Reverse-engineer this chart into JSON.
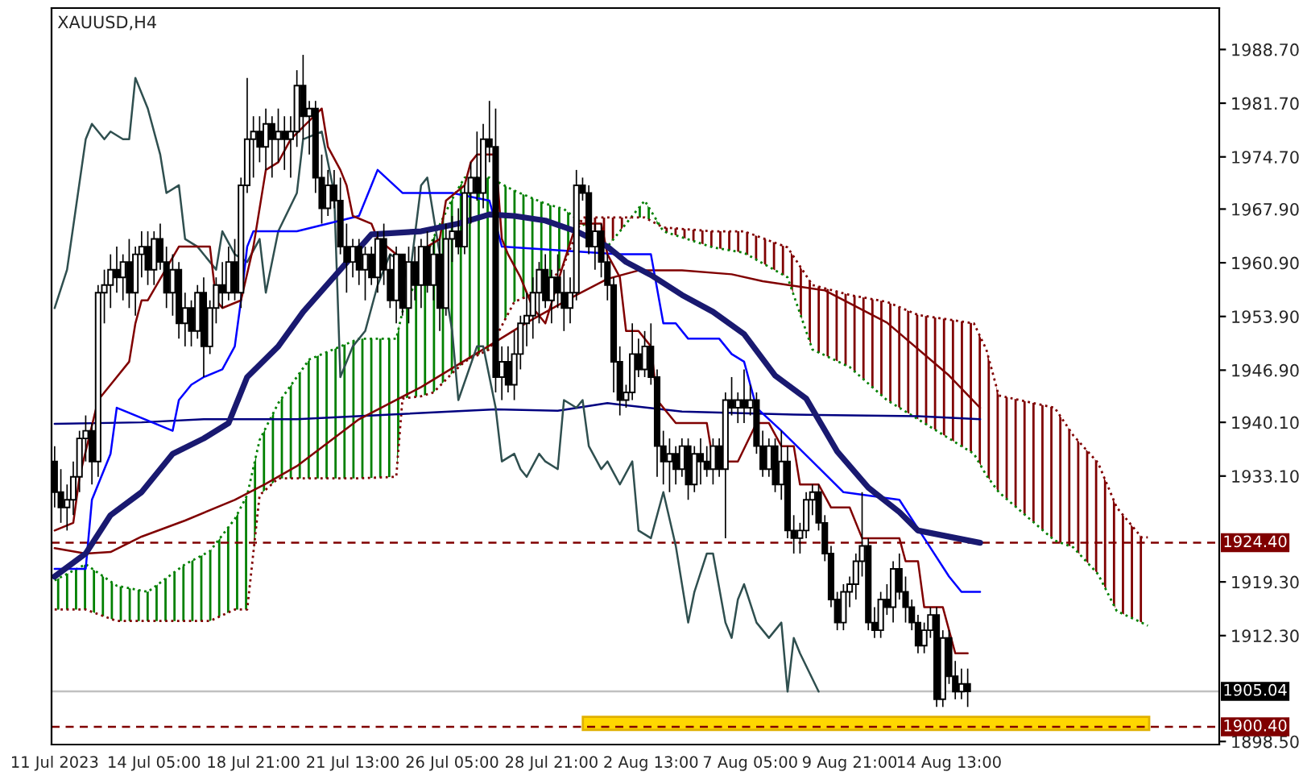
{
  "chart_data": {
    "type": "candlestick",
    "title": "XAUUSD,H4",
    "categories": [
      "11 Jul 2023",
      null,
      null,
      null,
      null,
      null,
      null,
      null,
      null,
      null,
      null,
      null,
      null,
      null,
      null,
      null,
      "14 Jul 05:00",
      null,
      null,
      null,
      null,
      null,
      null,
      null,
      null,
      null,
      null,
      null,
      null,
      null,
      null,
      null,
      "18 Jul 21:00",
      null,
      null,
      null,
      null,
      null,
      null,
      null,
      null,
      null,
      null,
      null,
      null,
      null,
      null,
      null,
      "21 Jul 13:00",
      null,
      null,
      null,
      null,
      null,
      null,
      null,
      null,
      null,
      null,
      null,
      null,
      null,
      null,
      null,
      "26 Jul 05:00",
      null,
      null,
      null,
      null,
      null,
      null,
      null,
      null,
      null,
      null,
      null,
      null,
      null,
      null,
      null,
      "28 Jul 21:00",
      null,
      null,
      null,
      null,
      null,
      null,
      null,
      null,
      null,
      null,
      null,
      null,
      null,
      null,
      null,
      "2 Aug 13:00",
      null,
      null,
      null,
      null,
      null,
      null,
      null,
      null,
      null,
      null,
      null,
      null,
      null,
      null,
      null,
      "7 Aug 05:00",
      null,
      null,
      null,
      null,
      null,
      null,
      null,
      null,
      null,
      null,
      null,
      null,
      null,
      null,
      null,
      "9 Aug 21:00",
      null,
      null,
      null,
      null,
      null,
      null,
      null,
      null,
      null,
      null,
      null,
      null,
      null,
      null,
      null,
      "14 Aug 13:00",
      null,
      null,
      null,
      null,
      null,
      null,
      null,
      null,
      null,
      null,
      null,
      null,
      null,
      null,
      null,
      null,
      null,
      null,
      null,
      null,
      null,
      null,
      null,
      null,
      null,
      null,
      null,
      null,
      null,
      null,
      null,
      null
    ],
    "ohlc": [
      [
        1935,
        1937,
        1929,
        1931
      ],
      [
        1931,
        1934,
        1927,
        1929
      ],
      [
        1929,
        1932,
        1926,
        1930
      ],
      [
        1930,
        1935,
        1928,
        1933
      ],
      [
        1933,
        1939,
        1931,
        1938
      ],
      [
        1938,
        1941,
        1935,
        1939
      ],
      [
        1939,
        1940,
        1932,
        1935
      ],
      [
        1935,
        1958,
        1933,
        1957
      ],
      [
        1957,
        1960,
        1953,
        1958
      ],
      [
        1958,
        1962,
        1955,
        1960
      ],
      [
        1960,
        1963,
        1957,
        1959
      ],
      [
        1959,
        1962,
        1956,
        1961
      ],
      [
        1961,
        1964,
        1955,
        1957
      ],
      [
        1957,
        1963,
        1954,
        1962
      ],
      [
        1962,
        1965,
        1959,
        1963
      ],
      [
        1963,
        1965,
        1958,
        1960
      ],
      [
        1960,
        1965,
        1958,
        1964
      ],
      [
        1964,
        1966,
        1960,
        1961
      ],
      [
        1961,
        1963,
        1955,
        1957
      ],
      [
        1957,
        1962,
        1954,
        1960
      ],
      [
        1960,
        1961,
        1951,
        1953
      ],
      [
        1953,
        1957,
        1950,
        1955
      ],
      [
        1955,
        1956,
        1950,
        1952
      ],
      [
        1952,
        1958,
        1951,
        1957
      ],
      [
        1957,
        1959,
        1946,
        1950
      ],
      [
        1950,
        1956,
        1949,
        1955
      ],
      [
        1955,
        1959,
        1953,
        1958
      ],
      [
        1958,
        1961,
        1955,
        1957
      ],
      [
        1957,
        1963,
        1956,
        1961
      ],
      [
        1961,
        1964,
        1956,
        1957
      ],
      [
        1957,
        1972,
        1955,
        1971
      ],
      [
        1971,
        1985,
        1970,
        1977
      ],
      [
        1977,
        1980,
        1972,
        1978
      ],
      [
        1978,
        1980,
        1974,
        1976
      ],
      [
        1976,
        1981,
        1973,
        1979
      ],
      [
        1979,
        1980,
        1972,
        1977
      ],
      [
        1977,
        1981,
        1974,
        1978
      ],
      [
        1978,
        1980,
        1973,
        1977
      ],
      [
        1977,
        1980,
        1972,
        1978
      ],
      [
        1978,
        1986,
        1976,
        1984
      ],
      [
        1984,
        1988,
        1977,
        1980
      ],
      [
        1980,
        1982,
        1975,
        1981
      ],
      [
        1981,
        1982,
        1970,
        1972
      ],
      [
        1972,
        1975,
        1966,
        1968
      ],
      [
        1968,
        1973,
        1967,
        1971
      ],
      [
        1971,
        1973,
        1968,
        1969
      ],
      [
        1969,
        1972,
        1962,
        1963
      ],
      [
        1963,
        1966,
        1957,
        1961
      ],
      [
        1961,
        1964,
        1959,
        1963
      ],
      [
        1963,
        1964,
        1958,
        1960
      ],
      [
        1960,
        1963,
        1956,
        1962
      ],
      [
        1962,
        1963,
        1958,
        1959
      ],
      [
        1959,
        1965,
        1957,
        1964
      ],
      [
        1964,
        1966,
        1958,
        1960
      ],
      [
        1960,
        1962,
        1955,
        1956
      ],
      [
        1956,
        1963,
        1953,
        1962
      ],
      [
        1962,
        1962,
        1954,
        1955
      ],
      [
        1955,
        1963,
        1953,
        1961
      ],
      [
        1961,
        1963,
        1956,
        1958
      ],
      [
        1958,
        1964,
        1955,
        1963
      ],
      [
        1963,
        1965,
        1957,
        1958
      ],
      [
        1958,
        1964,
        1956,
        1962
      ],
      [
        1962,
        1964,
        1952,
        1955
      ],
      [
        1955,
        1966,
        1954,
        1964
      ],
      [
        1964,
        1967,
        1961,
        1965
      ],
      [
        1965,
        1968,
        1962,
        1963
      ],
      [
        1963,
        1971,
        1962,
        1970
      ],
      [
        1970,
        1974,
        1966,
        1972
      ],
      [
        1972,
        1978,
        1969,
        1970
      ],
      [
        1970,
        1979,
        1968,
        1977
      ],
      [
        1977,
        1982,
        1974,
        1976
      ],
      [
        1976,
        1981,
        1944,
        1946
      ],
      [
        1946,
        1950,
        1943,
        1948
      ],
      [
        1948,
        1950,
        1944,
        1945
      ],
      [
        1945,
        1952,
        1943,
        1949
      ],
      [
        1949,
        1954,
        1947,
        1953
      ],
      [
        1953,
        1957,
        1950,
        1954
      ],
      [
        1954,
        1959,
        1951,
        1957
      ],
      [
        1957,
        1961,
        1953,
        1960
      ],
      [
        1960,
        1962,
        1955,
        1956
      ],
      [
        1956,
        1960,
        1953,
        1959
      ],
      [
        1959,
        1962,
        1955,
        1957
      ],
      [
        1957,
        1960,
        1952,
        1955
      ],
      [
        1955,
        1959,
        1953,
        1957
      ],
      [
        1957,
        1973,
        1956,
        1971
      ],
      [
        1971,
        1972,
        1969,
        1970
      ],
      [
        1970,
        1971,
        1962,
        1963
      ],
      [
        1963,
        1966,
        1960,
        1965
      ],
      [
        1965,
        1966,
        1959,
        1961
      ],
      [
        1961,
        1962,
        1956,
        1958
      ],
      [
        1958,
        1959,
        1944,
        1948
      ],
      [
        1948,
        1950,
        1941,
        1943
      ],
      [
        1943,
        1945,
        1942,
        1944
      ],
      [
        1944,
        1953,
        1943,
        1949
      ],
      [
        1949,
        1951,
        1946,
        1947
      ],
      [
        1947,
        1952,
        1946,
        1950
      ],
      [
        1950,
        1953,
        1945,
        1946
      ],
      [
        1946,
        1947,
        1933,
        1937
      ],
      [
        1937,
        1939,
        1932,
        1935
      ],
      [
        1935,
        1938,
        1931,
        1936
      ],
      [
        1936,
        1937,
        1932,
        1934
      ],
      [
        1934,
        1938,
        1933,
        1937
      ],
      [
        1937,
        1938,
        1930,
        1932
      ],
      [
        1932,
        1937,
        1931,
        1936
      ],
      [
        1936,
        1938,
        1932,
        1935
      ],
      [
        1935,
        1937,
        1933,
        1934
      ],
      [
        1934,
        1938,
        1932,
        1937
      ],
      [
        1937,
        1938,
        1933,
        1934
      ],
      [
        1934,
        1944,
        1925,
        1943
      ],
      [
        1943,
        1946,
        1941,
        1942
      ],
      [
        1942,
        1944,
        1940,
        1943
      ],
      [
        1943,
        1947,
        1940,
        1942
      ],
      [
        1942,
        1945,
        1941,
        1943
      ],
      [
        1943,
        1944,
        1936,
        1937
      ],
      [
        1937,
        1939,
        1933,
        1934
      ],
      [
        1934,
        1938,
        1933,
        1937
      ],
      [
        1937,
        1938,
        1931,
        1932
      ],
      [
        1932,
        1939,
        1930,
        1935
      ],
      [
        1935,
        1937,
        1925,
        1926
      ],
      [
        1926,
        1928,
        1923,
        1925
      ],
      [
        1925,
        1927,
        1923,
        1926
      ],
      [
        1926,
        1931,
        1925,
        1930
      ],
      [
        1930,
        1932,
        1928,
        1931
      ],
      [
        1931,
        1932,
        1926,
        1927
      ],
      [
        1927,
        1928,
        1922,
        1923
      ],
      [
        1923,
        1924,
        1916,
        1917
      ],
      [
        1917,
        1918,
        1913,
        1914
      ],
      [
        1914,
        1919,
        1913,
        1918
      ],
      [
        1918,
        1920,
        1916,
        1919
      ],
      [
        1919,
        1923,
        1917,
        1922
      ],
      [
        1922,
        1931,
        1920,
        1924
      ],
      [
        1924,
        1925,
        1913,
        1914
      ],
      [
        1914,
        1916,
        1912,
        1913
      ],
      [
        1913,
        1918,
        1912,
        1917
      ],
      [
        1917,
        1919,
        1915,
        1916
      ],
      [
        1916,
        1922,
        1914,
        1921
      ],
      [
        1921,
        1923,
        1917,
        1918
      ],
      [
        1918,
        1920,
        1914,
        1916
      ],
      [
        1916,
        1917,
        1913,
        1914
      ],
      [
        1914,
        1915,
        1910,
        1911
      ],
      [
        1911,
        1914,
        1910,
        1913
      ],
      [
        1913,
        1916,
        1912,
        1915
      ],
      [
        1915,
        1916,
        1903,
        1904
      ],
      [
        1904,
        1913,
        1903,
        1912
      ],
      [
        1912,
        1913,
        1906,
        1907
      ],
      [
        1907,
        1909,
        1904,
        1905
      ],
      [
        1905,
        1908,
        1904,
        1906
      ],
      [
        1906,
        1908,
        1903,
        1905.04
      ],
      null,
      null,
      null,
      null,
      null,
      null,
      null,
      null,
      null,
      null,
      null,
      null,
      null,
      null,
      null,
      null,
      null,
      null,
      null,
      null,
      null,
      null,
      null,
      null,
      null,
      null,
      null,
      null,
      null
    ],
    "series": [
      {
        "type": "line",
        "color": "#008000",
        "line_style": "dotted",
        "values": [
          1919.5,
          null,
          null,
          null,
          null,
          1921.6,
          null,
          null,
          null,
          null,
          1918.8,
          null,
          null,
          null,
          null,
          1918,
          null,
          null,
          null,
          null,
          null,
          1921.6,
          null,
          null,
          null,
          1923.3,
          null,
          null,
          null,
          1927.5,
          null,
          1930.6,
          null,
          1937.8,
          null,
          null,
          1942.6,
          null,
          null,
          null,
          null,
          1948.3,
          null,
          null,
          null,
          null,
          null,
          null,
          null,
          1951,
          null,
          null,
          null,
          null,
          null,
          1951,
          1954.5,
          null,
          null,
          1960,
          null,
          1964.2,
          null,
          null,
          1969.2,
          null,
          1972,
          null,
          null,
          null,
          1972,
          null,
          null,
          null,
          1970.3,
          null,
          null,
          null,
          null,
          1968.6,
          null,
          null,
          1967.9,
          null,
          null,
          1966,
          null,
          null,
          null,
          1963,
          null,
          null,
          null,
          null,
          null,
          1969,
          null,
          null,
          1965,
          null,
          null,
          null,
          null,
          null,
          null,
          null,
          1962.9,
          null,
          null,
          null,
          null,
          1962.2,
          null,
          null,
          null,
          null,
          null,
          null,
          1959,
          null,
          null,
          null,
          1949.6,
          null,
          null,
          null,
          null,
          null,
          1947.3,
          null,
          null,
          null,
          null,
          null,
          1943,
          null,
          null,
          null,
          null,
          1940.5,
          null,
          null,
          null,
          null,
          null,
          null,
          null,
          null,
          1936,
          null,
          1933.2,
          null,
          1931,
          null,
          null,
          null,
          null,
          null,
          null,
          null,
          null,
          1924.7,
          null,
          null,
          1923.8,
          null,
          null,
          null,
          1920.3,
          null,
          null,
          1915.5,
          null,
          null,
          null,
          1914,
          1913.6
        ]
      },
      {
        "type": "line",
        "color": "#800000",
        "line_style": "dotted",
        "values": [
          1915.7,
          null,
          null,
          null,
          null,
          1915.7,
          null,
          null,
          null,
          null,
          1914.2,
          null,
          null,
          null,
          null,
          1914.2,
          null,
          null,
          null,
          null,
          null,
          1914.2,
          null,
          null,
          null,
          1914.2,
          null,
          null,
          null,
          1915.7,
          null,
          1915.7,
          null,
          1930.6,
          null,
          null,
          1932.8,
          null,
          null,
          null,
          null,
          1932.8,
          null,
          null,
          null,
          null,
          null,
          null,
          null,
          1932.8,
          null,
          null,
          null,
          null,
          null,
          1933,
          1943.2,
          null,
          null,
          1943.5,
          null,
          1944,
          null,
          null,
          1946.5,
          null,
          1948,
          null,
          null,
          null,
          1949.6,
          null,
          null,
          null,
          1955.8,
          null,
          null,
          null,
          null,
          1957.5,
          null,
          null,
          1960.7,
          null,
          null,
          1966.8,
          null,
          null,
          null,
          1966.8,
          null,
          null,
          null,
          null,
          null,
          1966.8,
          null,
          null,
          1965.5,
          null,
          null,
          null,
          null,
          null,
          null,
          null,
          1965,
          null,
          null,
          null,
          null,
          1965,
          null,
          null,
          null,
          null,
          null,
          null,
          1962.9,
          null,
          null,
          null,
          1958,
          null,
          null,
          null,
          null,
          null,
          1956.7,
          null,
          null,
          null,
          null,
          null,
          1955.8,
          null,
          null,
          null,
          null,
          1954.1,
          null,
          null,
          null,
          null,
          null,
          null,
          null,
          null,
          1953,
          null,
          1949.6,
          null,
          1943.6,
          null,
          null,
          null,
          null,
          null,
          null,
          null,
          null,
          1942,
          null,
          null,
          1938.4,
          null,
          null,
          null,
          1934.8,
          null,
          null,
          1929,
          null,
          null,
          null,
          1925.1,
          1925.1
        ]
      },
      {
        "type": "line",
        "color": "#000080",
        "line_style": "solid",
        "values": [
          1939.9,
          null,
          null,
          null,
          null,
          null,
          null,
          null,
          null,
          null,
          null,
          null,
          null,
          null,
          1940.1,
          null,
          null,
          null,
          null,
          null,
          null,
          null,
          null,
          null,
          1940.5,
          null,
          null,
          null,
          null,
          null,
          null,
          null,
          null,
          null,
          null,
          null,
          null,
          null,
          null,
          1940.5,
          null,
          null,
          null,
          null,
          null,
          null,
          null,
          null,
          null,
          null,
          null,
          null,
          null,
          null,
          null,
          null,
          1941.2,
          null,
          null,
          null,
          null,
          null,
          null,
          null,
          null,
          null,
          null,
          null,
          null,
          null,
          null,
          1941.8,
          null,
          null,
          null,
          null,
          null,
          null,
          null,
          null,
          null,
          1941.6,
          null,
          null,
          null,
          null,
          null,
          null,
          null,
          1942.6,
          null,
          null,
          null,
          null,
          null,
          null,
          null,
          null,
          null,
          null,
          null,
          1941.5,
          null,
          null,
          null,
          null,
          null,
          null,
          null,
          null,
          null,
          null,
          null,
          null,
          null,
          null,
          null,
          null,
          null,
          1941.1,
          null,
          null,
          null,
          null,
          null,
          null,
          null,
          null,
          null,
          null,
          null,
          null,
          null,
          null,
          null,
          null,
          null,
          null,
          null,
          1940.9,
          null,
          null,
          null,
          null,
          null,
          null,
          null,
          null,
          null,
          1940.5,
          null,
          null,
          null,
          null,
          null,
          null,
          null,
          null,
          null,
          null,
          null,
          null,
          null,
          null,
          null,
          null,
          null,
          null,
          null,
          null,
          null,
          null,
          null,
          null,
          null,
          null,
          null
        ]
      },
      {
        "type": "line",
        "color": "#800000",
        "line_style": "solid",
        "values": [
          1923.7,
          null,
          null,
          null,
          null,
          1923,
          null,
          null,
          null,
          1923.2,
          null,
          null,
          null,
          null,
          1925.2,
          null,
          null,
          null,
          null,
          null,
          null,
          1927.3,
          null,
          null,
          null,
          null,
          null,
          null,
          null,
          1930,
          null,
          null,
          null,
          null,
          1932.1,
          null,
          null,
          null,
          null,
          1934.4,
          null,
          null,
          null,
          null,
          null,
          null,
          null,
          null,
          null,
          1940.5,
          null,
          null,
          null,
          null,
          null,
          null,
          null,
          null,
          null,
          1944.7,
          null,
          null,
          null,
          null,
          null,
          null,
          null,
          null,
          null,
          1949.6,
          null,
          null,
          null,
          null,
          null,
          null,
          1953.1,
          null,
          null,
          null,
          null,
          null,
          null,
          null,
          1956.7,
          null,
          null,
          null,
          null,
          1958.8,
          null,
          null,
          null,
          null,
          1959.9,
          null,
          null,
          null,
          null,
          null,
          null,
          1959.9,
          null,
          null,
          null,
          null,
          null,
          null,
          null,
          1959.4,
          null,
          null,
          null,
          null,
          1958.5,
          null,
          null,
          null,
          null,
          null,
          null,
          null,
          null,
          null,
          1957.3,
          null,
          null,
          null,
          null,
          null,
          null,
          null,
          null,
          null,
          1953.1,
          null,
          null,
          null,
          null,
          null,
          null,
          null,
          null,
          null,
          1946.2,
          null,
          null,
          null,
          null,
          1942,
          null,
          null,
          null,
          null,
          null,
          null,
          null,
          null,
          null,
          null,
          null,
          null,
          null,
          null,
          null,
          null,
          null,
          null,
          null,
          null,
          null,
          null,
          null,
          null,
          null,
          null,
          null
        ]
      },
      {
        "type": "line",
        "color": "#2f4f4f",
        "line_style": "solid",
        "values": [
          1955,
          null,
          1960,
          null,
          null,
          1977,
          1979,
          null,
          1977,
          1978,
          null,
          1977,
          1977,
          1985,
          null,
          1981,
          null,
          1975,
          1970,
          null,
          1971,
          1964,
          null,
          1963,
          null,
          1961,
          1960,
          1965,
          null,
          1962,
          null,
          1961,
          null,
          1964,
          1957,
          null,
          1965,
          null,
          null,
          1970,
          1977,
          null,
          null,
          1978,
          null,
          1970,
          1946,
          null,
          1950,
          null,
          1952,
          null,
          1958,
          null,
          1962,
          null,
          1961,
          1958,
          null,
          1971,
          1972,
          null,
          1962,
          null,
          1952,
          1943,
          null,
          null,
          1950,
          1950,
          null,
          1942,
          1935,
          null,
          1936,
          1934,
          1933,
          null,
          1936,
          1935,
          null,
          1934,
          1943,
          null,
          1942,
          1943,
          1937,
          null,
          1934,
          1935,
          null,
          1932,
          null,
          1935,
          1926,
          null,
          1925,
          null,
          1931,
          null,
          1924,
          null,
          1914,
          1918,
          null,
          1923,
          1923,
          null,
          1914,
          1912,
          1917,
          1919,
          null,
          1914,
          null,
          1912,
          null,
          1914,
          1905,
          1912,
          1910,
          null,
          null,
          1905,
          null,
          null,
          null,
          null,
          null,
          null,
          null,
          null,
          null,
          null,
          null,
          null,
          null,
          null,
          null,
          null,
          null,
          null,
          null,
          null,
          null,
          null,
          null,
          null,
          null,
          null,
          null,
          null,
          null,
          null,
          null,
          null,
          null,
          null,
          null,
          null,
          null,
          null,
          null,
          null,
          null,
          null,
          null,
          null,
          null,
          null,
          null,
          null,
          null,
          null,
          null,
          null,
          null
        ]
      },
      {
        "type": "line",
        "color": "#0000ff",
        "line_style": "solid",
        "values": [
          1921,
          null,
          null,
          null,
          null,
          1921,
          1930,
          1932,
          null,
          1936,
          1942,
          null,
          null,
          null,
          null,
          null,
          null,
          null,
          null,
          1939,
          1943,
          null,
          1945,
          null,
          1946,
          null,
          null,
          1947,
          null,
          1950,
          1956,
          1963,
          1965,
          null,
          null,
          null,
          null,
          null,
          null,
          1965,
          null,
          null,
          null,
          null,
          null,
          null,
          null,
          null,
          null,
          1967,
          null,
          1971,
          1973,
          null,
          null,
          null,
          1970,
          null,
          null,
          null,
          null,
          null,
          null,
          null,
          1970,
          null,
          null,
          null,
          null,
          null,
          1969,
          null,
          1963,
          null,
          null,
          null,
          null,
          null,
          null,
          null,
          null,
          null,
          null,
          null,
          null,
          null,
          null,
          null,
          null,
          null,
          null,
          1962,
          null,
          null,
          null,
          null,
          1962,
          null,
          1953,
          null,
          1953,
          null,
          1951,
          null,
          null,
          null,
          null,
          1951,
          null,
          1949,
          null,
          1948,
          null,
          1942,
          null,
          null,
          null,
          1939,
          null,
          null,
          null,
          null,
          1935,
          null,
          null,
          null,
          null,
          1931,
          null,
          null,
          null,
          null,
          null,
          null,
          null,
          null,
          1930,
          null,
          null,
          null,
          1925,
          null,
          null,
          null,
          1920,
          null,
          1918,
          null,
          null,
          1918,
          null,
          null,
          null,
          null,
          null,
          null,
          null,
          null,
          null,
          null,
          null,
          null,
          null,
          null,
          null,
          null,
          null,
          null,
          null,
          null,
          null,
          null,
          null,
          null,
          null,
          null,
          null
        ]
      },
      {
        "type": "line",
        "color": "#800000",
        "line_style": "solid",
        "values": [
          1926,
          null,
          null,
          1927,
          1933,
          null,
          null,
          1943,
          null,
          1945,
          null,
          null,
          1948,
          1953,
          1956,
          1956,
          null,
          null,
          null,
          null,
          1963,
          null,
          null,
          null,
          null,
          1963,
          1956,
          1955,
          null,
          null,
          1956,
          null,
          1963,
          1968,
          1973,
          null,
          1974,
          null,
          1977,
          null,
          null,
          null,
          null,
          1981,
          1976,
          null,
          1973,
          1971,
          1967,
          null,
          null,
          1966,
          1964,
          null,
          null,
          null,
          null,
          null,
          1960,
          null,
          1963,
          null,
          1964,
          1969,
          null,
          null,
          1971,
          1974,
          1975,
          null,
          null,
          1975,
          1964,
          1962,
          null,
          1959,
          null,
          1955,
          null,
          1953,
          null,
          null,
          1961,
          null,
          1966,
          null,
          null,
          null,
          1966,
          1962,
          null,
          1959,
          1952,
          null,
          1952,
          null,
          1950,
          1943,
          null,
          null,
          1940,
          null,
          null,
          null,
          null,
          1940,
          1935,
          null,
          null,
          null,
          1935,
          null,
          null,
          1940,
          null,
          1940,
          null,
          1937,
          null,
          1937,
          1932,
          null,
          null,
          1932,
          null,
          1929,
          null,
          null,
          1929,
          null,
          1925,
          null,
          null,
          null,
          null,
          null,
          1925,
          1922,
          null,
          1922,
          1916,
          null,
          null,
          1916,
          null,
          1910,
          null,
          1910,
          null,
          null,
          null,
          null,
          null,
          null,
          null,
          null,
          null,
          null,
          null,
          null,
          null,
          null,
          null,
          null,
          null,
          null,
          null,
          null,
          null,
          null,
          null,
          null,
          null,
          null,
          null,
          null,
          null
        ]
      },
      {
        "type": "line",
        "color": "#191970",
        "line_style": "solid",
        "values": [
          1920,
          null,
          null,
          null,
          null,
          1923,
          null,
          null,
          null,
          1928,
          null,
          null,
          null,
          null,
          1931,
          null,
          null,
          null,
          null,
          1936,
          null,
          null,
          null,
          null,
          1938,
          null,
          null,
          null,
          1940,
          null,
          null,
          1946,
          null,
          null,
          null,
          null,
          1950,
          null,
          null,
          null,
          1954.5,
          null,
          null,
          null,
          null,
          null,
          1960,
          null,
          null,
          null,
          null,
          1964.6,
          null,
          null,
          null,
          null,
          null,
          null,
          null,
          1965,
          null,
          null,
          null,
          null,
          null,
          1966,
          null,
          null,
          null,
          null,
          1967.2,
          null,
          null,
          null,
          1967,
          null,
          null,
          null,
          null,
          1966.4,
          null,
          null,
          null,
          null,
          1965,
          null,
          null,
          null,
          null,
          1963,
          null,
          null,
          1961,
          null,
          null,
          null,
          1959.3,
          null,
          null,
          null,
          null,
          1956.7,
          null,
          null,
          null,
          null,
          1954.5,
          null,
          null,
          null,
          null,
          1951.6,
          null,
          null,
          null,
          null,
          1946.2,
          null,
          null,
          null,
          null,
          1943.2,
          null,
          null,
          null,
          null,
          1936.3,
          null,
          null,
          null,
          null,
          1931.6,
          null,
          null,
          null,
          null,
          1928.4,
          null,
          null,
          1926,
          null,
          null,
          null,
          null,
          null,
          null,
          null,
          null,
          null,
          1924.4,
          null,
          null,
          null,
          null,
          null,
          null,
          null,
          null,
          null,
          null,
          null,
          null,
          null,
          null,
          null,
          null,
          null,
          null,
          null,
          null,
          null,
          null,
          null,
          null,
          null,
          null,
          null
        ]
      }
    ],
    "ref_lines": [
      {
        "axis": "y",
        "value": 1924.4,
        "label": "1924.40",
        "color": "#800000",
        "line_style": "dashed"
      },
      {
        "axis": "y",
        "value": 1905.04,
        "label": "1905.04",
        "color": "#c0c0c0",
        "line_style": "solid"
      },
      {
        "axis": "y",
        "value": 1900.4,
        "label": "1900.40",
        "color": "#800000",
        "line_style": "dashed"
      }
    ],
    "bands": [
      {
        "axis": "y",
        "from": 1900.0,
        "to": 1901.7,
        "color": "#ffd700"
      }
    ],
    "ylim": [
      1898.1,
      1994.1
    ],
    "yticks": [
      {
        "value": 1988.7,
        "label": "1988.70"
      },
      {
        "value": 1981.7,
        "label": "1981.70"
      },
      {
        "value": 1974.7,
        "label": "1974.70"
      },
      {
        "value": 1967.9,
        "label": "1967.90"
      },
      {
        "value": 1960.9,
        "label": "1960.90"
      },
      {
        "value": 1953.9,
        "label": "1953.90"
      },
      {
        "value": 1946.9,
        "label": "1946.90"
      },
      {
        "value": 1940.1,
        "label": "1940.10"
      },
      {
        "value": 1933.1,
        "label": "1933.10"
      },
      {
        "value": 1919.3,
        "label": "1919.30"
      },
      {
        "value": 1912.3,
        "label": "1912.30"
      },
      {
        "value": 1898.5,
        "label": "1898.50"
      }
    ],
    "grid": false
  }
}
